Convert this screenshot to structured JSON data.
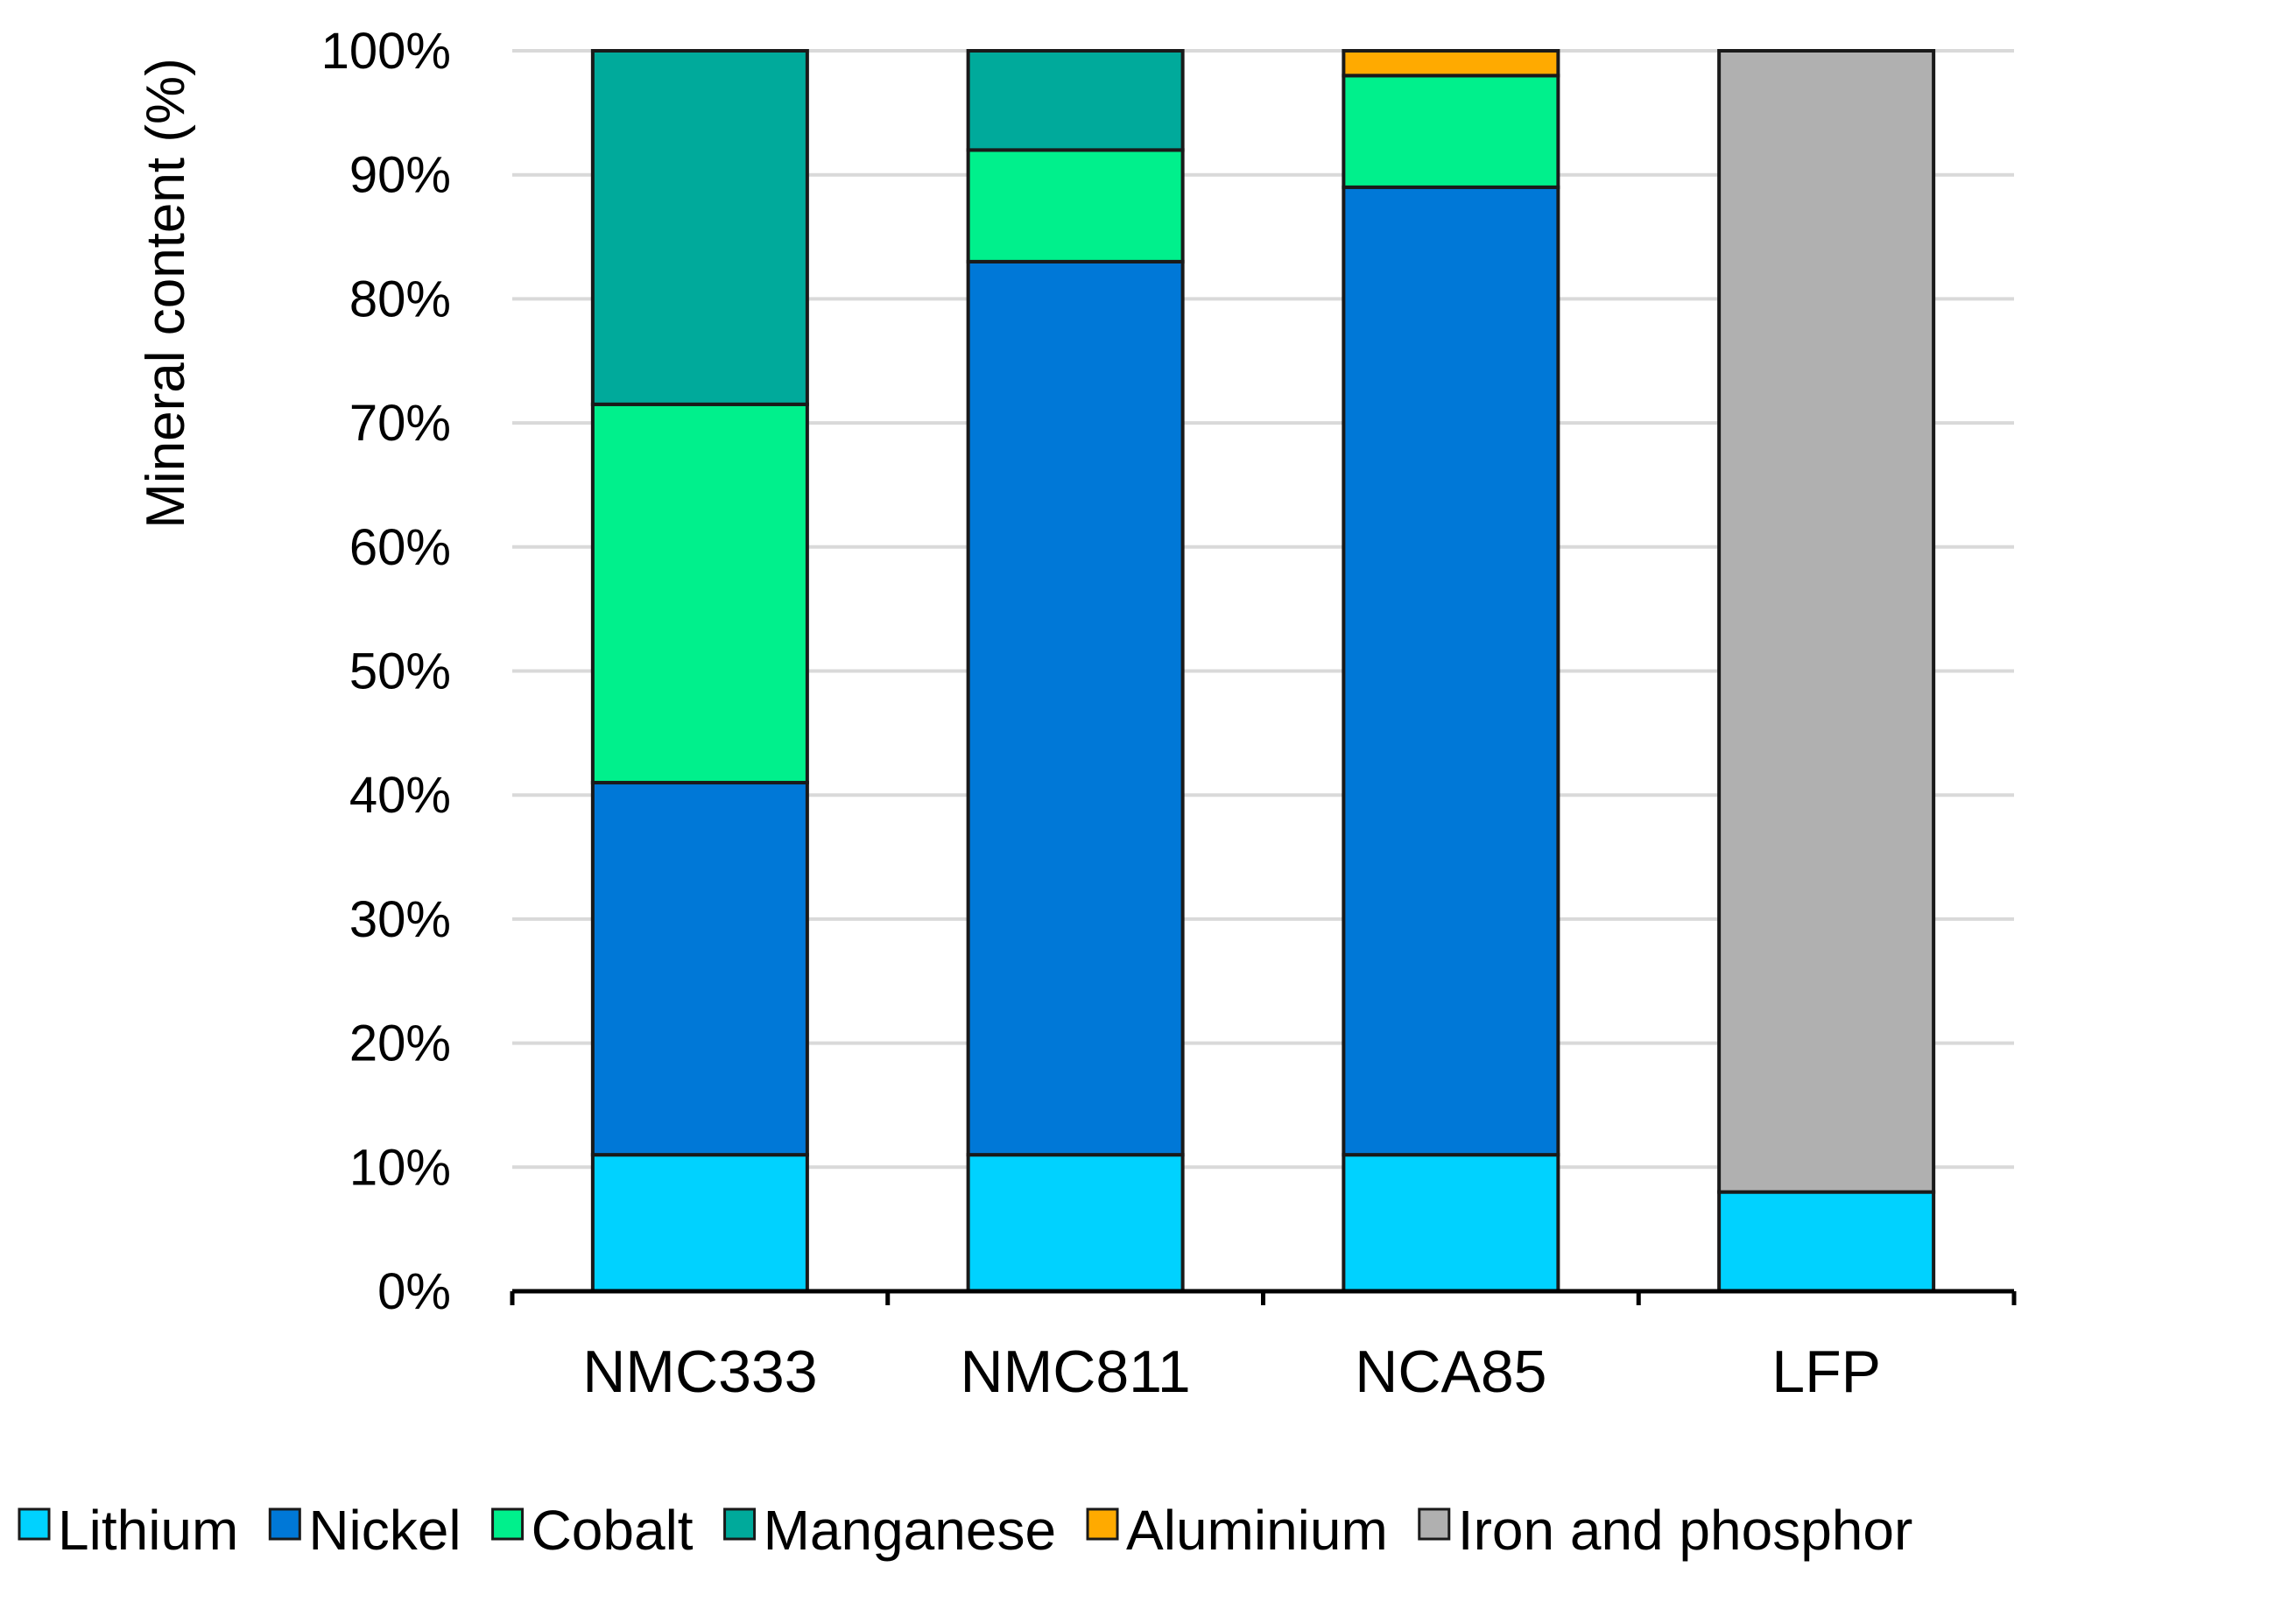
{
  "chart_data": {
    "type": "bar",
    "stacked": true,
    "categories": [
      "NMC333",
      "NMC811",
      "NCA85",
      "LFP"
    ],
    "ylabel": "Mineral content (%)",
    "xlabel": "",
    "ylim": [
      0,
      100
    ],
    "yticks": [
      "0%",
      "10%",
      "20%",
      "30%",
      "40%",
      "50%",
      "60%",
      "70%",
      "80%",
      "90%",
      "100%"
    ],
    "grid": true,
    "legend_position": "bottom",
    "series": [
      {
        "name": "Lithium",
        "color": "#00d2ff",
        "values": [
          11,
          11,
          11,
          8
        ]
      },
      {
        "name": "Nickel",
        "color": "#0078d7",
        "values": [
          30,
          72,
          78,
          0
        ]
      },
      {
        "name": "Cobalt",
        "color": "#00f08c",
        "values": [
          30.5,
          9,
          9,
          0
        ]
      },
      {
        "name": "Manganese",
        "color": "#00aa9b",
        "values": [
          28.5,
          8,
          0,
          0
        ]
      },
      {
        "name": "Aluminium",
        "color": "#ffaa00",
        "values": [
          0,
          0,
          2,
          0
        ]
      },
      {
        "name": "Iron and phosphor",
        "color": "#b0b0b0",
        "values": [
          0,
          0,
          0,
          92
        ]
      }
    ]
  }
}
